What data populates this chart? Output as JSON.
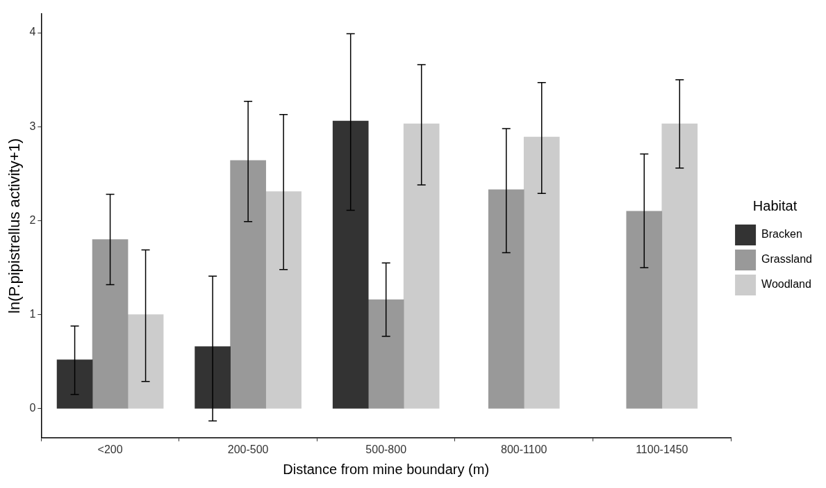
{
  "chart_data": {
    "type": "bar",
    "xlabel": "Distance from mine boundary (m)",
    "ylabel": "ln(P.pipistrellus activity+1)",
    "legend_title": "Habitat",
    "legend": "right",
    "grid": false,
    "categories": [
      "<200",
      "200-500",
      "500-800",
      "800-1100",
      "1100-1450"
    ],
    "ylim": [
      -0.31,
      4.2
    ],
    "yticks": [
      0,
      1,
      2,
      3,
      4
    ],
    "series": [
      {
        "name": "Bracken",
        "color": "#333333",
        "values": [
          0.52,
          0.66,
          3.06,
          null,
          null
        ],
        "errors": [
          [
            0.15,
            0.88
          ],
          [
            -0.13,
            1.41
          ],
          [
            2.11,
            3.99
          ],
          null,
          null
        ]
      },
      {
        "name": "Grassland",
        "color": "#999999",
        "values": [
          1.8,
          2.64,
          1.16,
          2.33,
          2.1
        ],
        "errors": [
          [
            1.32,
            2.28
          ],
          [
            1.99,
            3.27
          ],
          [
            0.77,
            1.55
          ],
          [
            1.66,
            2.98
          ],
          [
            1.5,
            2.71
          ]
        ]
      },
      {
        "name": "Woodland",
        "color": "#cccccc",
        "values": [
          1.0,
          2.31,
          3.03,
          2.89,
          3.03
        ],
        "errors": [
          [
            0.29,
            1.69
          ],
          [
            1.48,
            3.13
          ],
          [
            2.38,
            3.66
          ],
          [
            2.29,
            3.47
          ],
          [
            2.56,
            3.5
          ]
        ]
      }
    ]
  }
}
